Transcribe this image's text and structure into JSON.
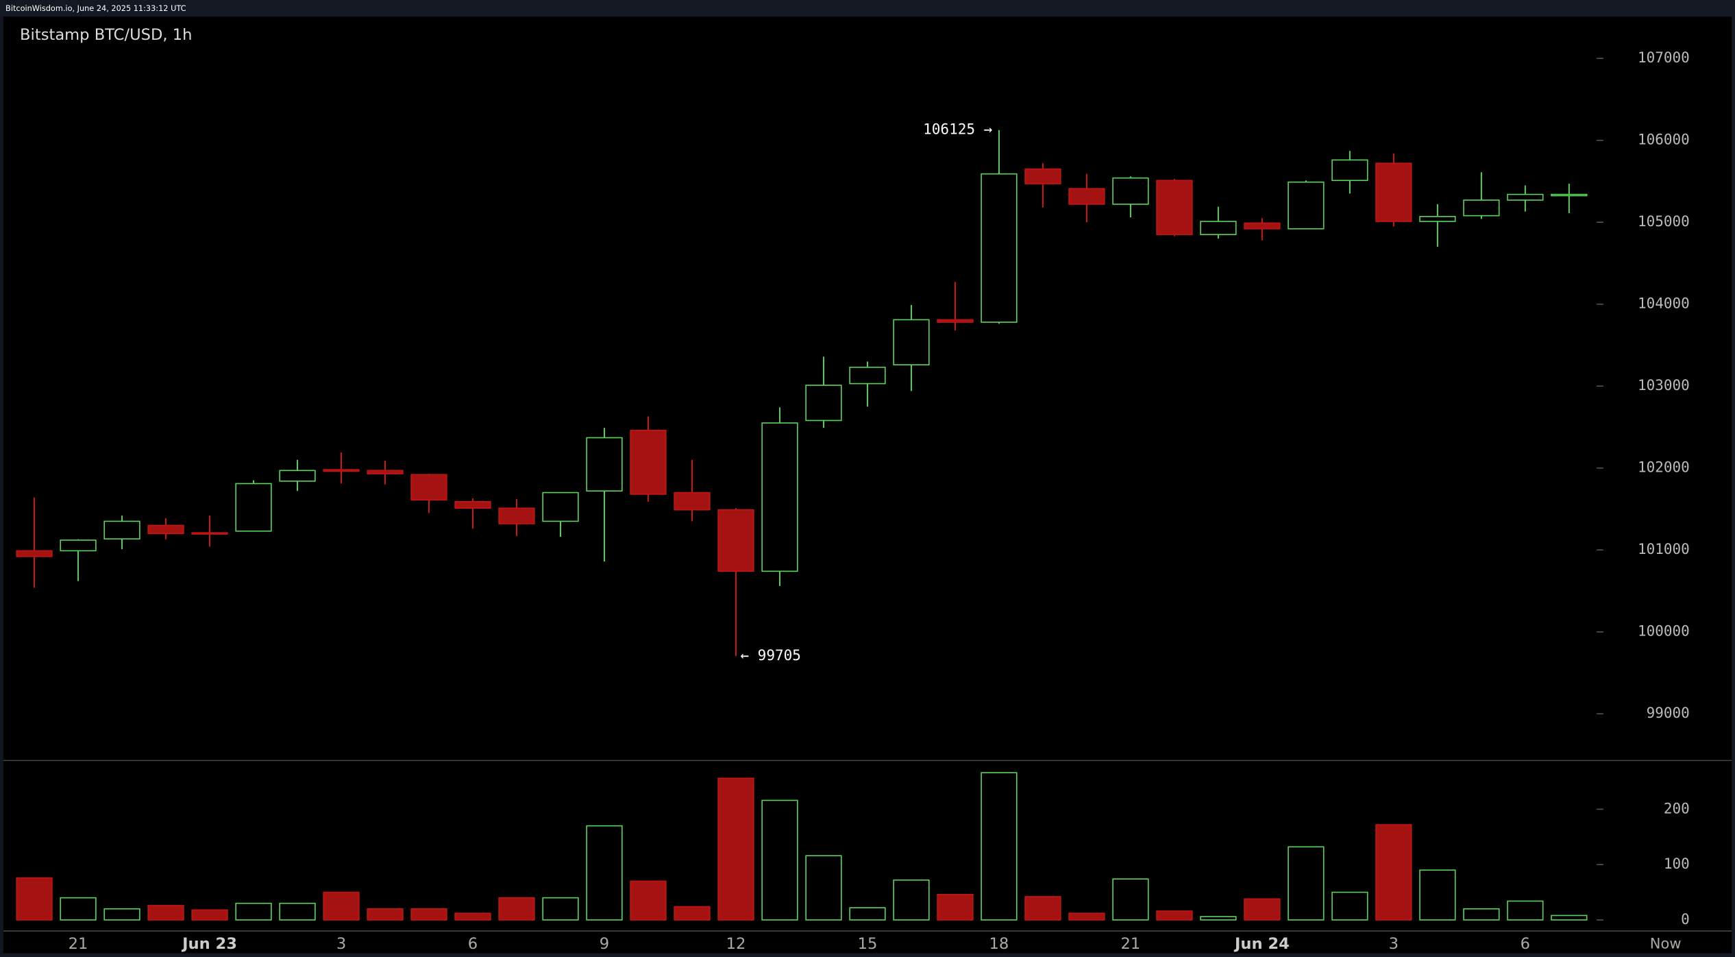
{
  "header": "BitcoinWisdom.io, June 24, 2025 11:33:12 UTC",
  "chart_data": [
    {
      "type": "candlestick",
      "title": "Bitstamp BTC/USD, 1h",
      "open": [
        100990,
        100990,
        101135,
        101300,
        101210,
        101230,
        101840,
        101980,
        101970,
        101920,
        101590,
        101510,
        101350,
        101720,
        102460,
        101700,
        101490,
        100740,
        102580,
        103030,
        103260,
        103810,
        103780,
        105650,
        105410,
        105220,
        105510,
        104850,
        104990,
        104920,
        105510,
        105720,
        105010,
        105080,
        105270,
        105330
      ],
      "high": [
        101640,
        101130,
        101420,
        101390,
        101420,
        101850,
        102100,
        102190,
        102090,
        101930,
        101630,
        101620,
        101700,
        102490,
        102630,
        102100,
        101510,
        102740,
        103360,
        103300,
        103990,
        104270,
        106125,
        105720,
        105590,
        105560,
        105530,
        105190,
        105050,
        105510,
        105870,
        105840,
        105220,
        105610,
        105450,
        105470
      ],
      "low": [
        100540,
        100620,
        101010,
        101130,
        101040,
        101230,
        101720,
        101810,
        101800,
        101450,
        101260,
        101170,
        101160,
        100860,
        101590,
        101350,
        99705,
        100560,
        102490,
        102750,
        102940,
        103680,
        103760,
        105180,
        105000,
        105060,
        104830,
        104800,
        104780,
        104920,
        105350,
        104950,
        104700,
        105040,
        105130,
        105110
      ],
      "close": [
        100920,
        101120,
        101350,
        101200,
        101200,
        101810,
        101970,
        101960,
        101930,
        101610,
        101510,
        101320,
        101700,
        102370,
        101680,
        101490,
        100740,
        102550,
        103010,
        103230,
        103810,
        103780,
        105590,
        105470,
        105220,
        105540,
        104850,
        105010,
        104920,
        105490,
        105760,
        105010,
        105070,
        105270,
        105340,
        105340
      ],
      "up_color": "#5ad35a",
      "down_color": "#a51212",
      "ylim": [
        98430,
        107510
      ],
      "yticks": [
        99000,
        100000,
        101000,
        102000,
        103000,
        104000,
        105000,
        106000,
        107000
      ],
      "annotations": [
        "106125 →",
        "← 99705"
      ]
    },
    {
      "type": "bar",
      "values": [
        76,
        40,
        20,
        26,
        18,
        30,
        30,
        50,
        20,
        20,
        12,
        40,
        40,
        170,
        70,
        24,
        256,
        216,
        116,
        22,
        72,
        46,
        266,
        42,
        12,
        74,
        16,
        6,
        38,
        132,
        50,
        172,
        90,
        20,
        34,
        8
      ],
      "ylim": [
        -20,
        286
      ],
      "yticks": [
        0,
        100,
        200
      ],
      "categories": [
        null,
        "21",
        null,
        null,
        "Jun 23",
        null,
        null,
        "3",
        null,
        null,
        "6",
        null,
        null,
        "9",
        null,
        null,
        "12",
        null,
        null,
        "15",
        null,
        null,
        "18",
        null,
        null,
        "21",
        null,
        null,
        "Jun 24",
        null,
        null,
        "3",
        null,
        null,
        "6",
        null
      ],
      "now_label": "Now"
    }
  ]
}
